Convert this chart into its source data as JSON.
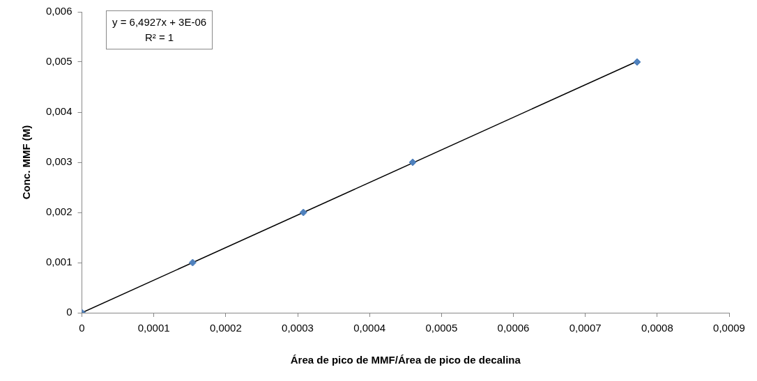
{
  "chart_data": {
    "type": "scatter",
    "xlabel": "Área de pico de MMF/Área de pico de decalina",
    "ylabel": "Conc. MMF (M)",
    "annotations": [
      "y = 6,4927x + 3E-06",
      "R² = 1"
    ],
    "series": [
      {
        "type": "scatter",
        "marker": "diamond",
        "color": "#4f81bd",
        "x": [
          0,
          0.000154,
          0.000308,
          0.00046,
          0.000772
        ],
        "values": [
          0,
          0.001,
          0.002,
          0.003,
          0.005
        ]
      },
      {
        "type": "line",
        "marker": "none",
        "color": "#000000",
        "x": [
          0,
          0.00077
        ],
        "values": [
          0,
          0.005
        ]
      }
    ],
    "legend": false,
    "xlim": [
      0,
      0.0009
    ],
    "ylim": [
      0,
      0.006
    ],
    "xticks": [
      0,
      {
        "value": 0.0001,
        "label": "0,0001"
      },
      {
        "value": 0.0002,
        "label": "0,0002"
      },
      {
        "value": 0.0003,
        "label": "0,0003"
      },
      {
        "value": 0.0004,
        "label": "0,0004"
      },
      {
        "value": 0.0005,
        "label": "0,0005"
      },
      {
        "value": 0.0006,
        "label": "0,0006"
      },
      {
        "value": 0.0007,
        "label": "0,0007"
      },
      {
        "value": 0.0008,
        "label": "0,0008"
      },
      {
        "value": 0.0009,
        "label": "0,0009"
      }
    ],
    "yticks": [
      0,
      {
        "value": 0.001,
        "label": "0,001"
      },
      {
        "value": 0.002,
        "label": "0,002"
      },
      {
        "value": 0.003,
        "label": "0,003"
      },
      {
        "value": 0.004,
        "label": "0,004"
      },
      {
        "value": 0.005,
        "label": "0,005"
      },
      {
        "value": 0.006,
        "label": "0,006"
      }
    ]
  }
}
